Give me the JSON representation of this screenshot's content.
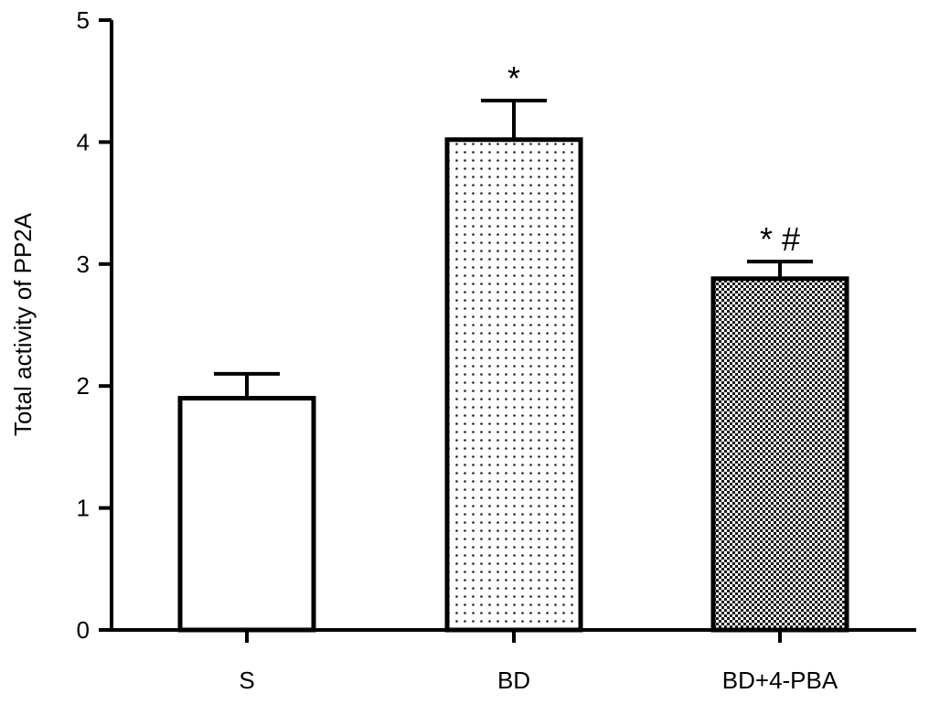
{
  "chart_data": {
    "type": "bar",
    "categories": [
      "S",
      "BD",
      "BD+4-PBA"
    ],
    "values": [
      1.9,
      4.02,
      2.88
    ],
    "errors": [
      0.2,
      0.32,
      0.14
    ],
    "annotations": [
      "",
      "*",
      "* #"
    ],
    "patterns": [
      "none",
      "dots",
      "checker"
    ],
    "ylabel": "Total activity of PP2A",
    "xlabel": "",
    "ylim": [
      0,
      5
    ],
    "yticks": [
      "0",
      "1",
      "2",
      "3",
      "4",
      "5"
    ],
    "grid": false,
    "legend": "none"
  }
}
